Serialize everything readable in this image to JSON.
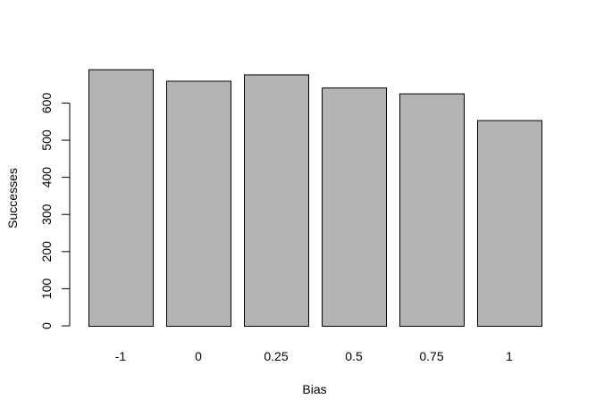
{
  "chart_data": {
    "type": "bar",
    "title": "",
    "xlabel": "Bias",
    "ylabel": "Successes",
    "categories": [
      "-1",
      "0",
      "0.25",
      "0.5",
      "0.75",
      "1"
    ],
    "values": [
      691,
      660,
      677,
      642,
      626,
      554
    ],
    "ylim": [
      0,
      690
    ],
    "yticks": [
      0,
      100,
      200,
      300,
      400,
      500,
      600
    ],
    "ytick_labels": [
      "0",
      "100",
      "200",
      "300",
      "400",
      "500",
      "600"
    ],
    "grid": false,
    "legend": "none",
    "colors": {
      "bar_fill": "#b3b3b3",
      "bar_stroke": "#000000",
      "axis": "#000000"
    }
  }
}
